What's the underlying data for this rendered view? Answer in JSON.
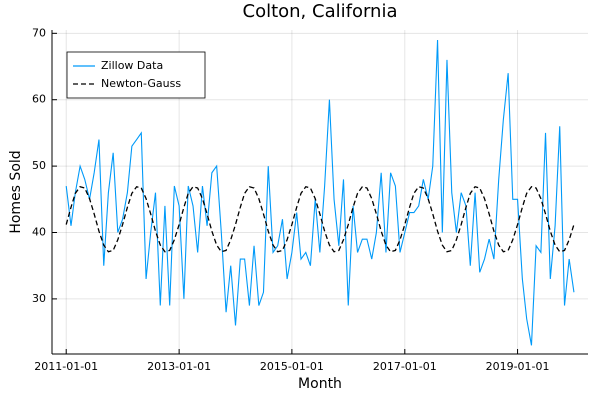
{
  "chart_data": {
    "type": "line",
    "title": "Colton, California",
    "x_label": "Month",
    "y_label": "Homes Sold",
    "x": [
      "2011-01-01",
      "2011-02-01",
      "2011-03-01",
      "2011-04-01",
      "2011-05-01",
      "2011-06-01",
      "2011-07-01",
      "2011-08-01",
      "2011-09-01",
      "2011-10-01",
      "2011-11-01",
      "2011-12-01",
      "2012-01-01",
      "2012-02-01",
      "2012-03-01",
      "2012-04-01",
      "2012-05-01",
      "2012-06-01",
      "2012-07-01",
      "2012-08-01",
      "2012-09-01",
      "2012-10-01",
      "2012-11-01",
      "2012-12-01",
      "2013-01-01",
      "2013-02-01",
      "2013-03-01",
      "2013-04-01",
      "2013-05-01",
      "2013-06-01",
      "2013-07-01",
      "2013-08-01",
      "2013-09-01",
      "2013-10-01",
      "2013-11-01",
      "2013-12-01",
      "2014-01-01",
      "2014-02-01",
      "2014-03-01",
      "2014-04-01",
      "2014-05-01",
      "2014-06-01",
      "2014-07-01",
      "2014-08-01",
      "2014-09-01",
      "2014-10-01",
      "2014-11-01",
      "2014-12-01",
      "2015-01-01",
      "2015-02-01",
      "2015-03-01",
      "2015-04-01",
      "2015-05-01",
      "2015-06-01",
      "2015-07-01",
      "2015-08-01",
      "2015-09-01",
      "2015-10-01",
      "2015-11-01",
      "2015-12-01",
      "2016-01-01",
      "2016-02-01",
      "2016-03-01",
      "2016-04-01",
      "2016-05-01",
      "2016-06-01",
      "2016-07-01",
      "2016-08-01",
      "2016-09-01",
      "2016-10-01",
      "2016-11-01",
      "2016-12-01",
      "2017-01-01",
      "2017-02-01",
      "2017-03-01",
      "2017-04-01",
      "2017-05-01",
      "2017-06-01",
      "2017-07-01",
      "2017-08-01",
      "2017-09-01",
      "2017-10-01",
      "2017-11-01",
      "2017-12-01",
      "2018-01-01",
      "2018-02-01",
      "2018-03-01",
      "2018-04-01",
      "2018-05-01",
      "2018-06-01",
      "2018-07-01",
      "2018-08-01",
      "2018-09-01",
      "2018-10-01",
      "2018-11-01",
      "2018-12-01",
      "2019-01-01",
      "2019-02-01",
      "2019-03-01",
      "2019-04-01",
      "2019-05-01",
      "2019-06-01",
      "2019-07-01",
      "2019-08-01",
      "2019-09-01",
      "2019-10-01",
      "2019-11-01",
      "2019-12-01",
      "2020-01-01"
    ],
    "series": [
      {
        "name": "Zillow Data",
        "color": "#009af9",
        "style": "solid",
        "values": [
          47,
          41,
          46,
          50,
          48,
          45,
          49,
          54,
          35,
          46,
          52,
          40,
          42,
          46,
          53,
          54,
          55,
          33,
          40,
          46,
          29,
          44,
          29,
          47,
          44,
          30,
          47,
          44,
          37,
          47,
          41,
          49,
          50,
          40,
          28,
          35,
          26,
          36,
          36,
          29,
          38,
          29,
          31,
          50,
          37,
          38,
          42,
          33,
          37,
          43,
          36,
          37,
          35,
          45,
          37,
          47,
          60,
          45,
          38,
          48,
          29,
          44,
          37,
          39,
          39,
          36,
          40,
          49,
          37,
          49,
          47,
          37,
          40,
          43,
          43,
          44,
          48,
          45,
          50,
          69,
          40,
          66,
          46,
          40,
          46,
          44,
          35,
          46,
          34,
          36,
          39,
          36,
          48,
          57,
          64,
          45,
          45,
          33,
          27,
          23,
          38,
          37,
          55,
          33,
          41,
          56,
          29,
          36,
          31
        ]
      },
      {
        "name": "Newton-Gauss",
        "color": "#000000",
        "style": "dashed",
        "values": [
          41.2,
          43.8,
          45.9,
          46.9,
          46.7,
          45.1,
          42.8,
          40.2,
          38.1,
          37.1,
          37.3,
          38.9,
          41.2,
          43.8,
          45.9,
          46.9,
          46.7,
          45.1,
          42.8,
          40.2,
          38.1,
          37.1,
          37.3,
          38.9,
          41.2,
          43.8,
          45.9,
          46.9,
          46.7,
          45.1,
          42.8,
          40.2,
          38.1,
          37.1,
          37.3,
          38.9,
          41.2,
          43.8,
          45.9,
          46.9,
          46.7,
          45.1,
          42.8,
          40.2,
          38.1,
          37.1,
          37.3,
          38.9,
          41.2,
          43.8,
          45.9,
          46.9,
          46.7,
          45.1,
          42.8,
          40.2,
          38.1,
          37.1,
          37.3,
          38.9,
          41.2,
          43.8,
          45.9,
          46.9,
          46.7,
          45.1,
          42.8,
          40.2,
          38.1,
          37.1,
          37.3,
          38.9,
          41.2,
          43.8,
          45.9,
          46.9,
          46.7,
          45.1,
          42.8,
          40.2,
          38.1,
          37.1,
          37.3,
          38.9,
          41.2,
          43.8,
          45.9,
          46.9,
          46.7,
          45.1,
          42.8,
          40.2,
          38.1,
          37.1,
          37.3,
          38.9,
          41.2,
          43.8,
          45.9,
          46.9,
          46.7,
          45.1,
          42.8,
          40.2,
          38.1,
          37.1,
          37.3,
          38.9,
          41.2
        ]
      }
    ],
    "xlim": [
      "2010-10-01",
      "2020-04-01"
    ],
    "xticks": [
      "2011-01-01",
      "2013-01-01",
      "2015-01-01",
      "2017-01-01",
      "2019-01-01"
    ],
    "ylim": [
      21.7,
      70.5
    ],
    "yticks": [
      30,
      40,
      50,
      60,
      70
    ],
    "grid": true,
    "legend": "top-left"
  }
}
